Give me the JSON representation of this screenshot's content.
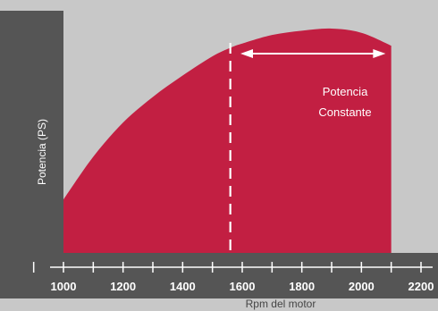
{
  "chart_data": {
    "type": "area",
    "title": "",
    "xlabel": "Rpm del motor",
    "ylabel": "Potencia (PS)",
    "xlim": [
      1000,
      2200
    ],
    "x_ticks": [
      1000,
      1200,
      1400,
      1600,
      1800,
      2000,
      2200
    ],
    "x": [
      1000,
      1100,
      1200,
      1300,
      1400,
      1500,
      1560,
      1600,
      1700,
      1800,
      1900,
      2000,
      2100
    ],
    "y": [
      0.25,
      0.45,
      0.61,
      0.73,
      0.83,
      0.92,
      0.96,
      0.98,
      1.02,
      1.04,
      1.05,
      1.03,
      0.97
    ],
    "ylim": [
      0,
      1.1
    ],
    "marker_x": 1560,
    "annotation": {
      "text_lines": [
        "Potencia",
        "Constante"
      ],
      "from_x": 1600,
      "to_x": 2090
    },
    "colors": {
      "fill": "#c21f42",
      "axis": "#555555",
      "background": "#c8c8c8",
      "ticks": "#ffffff",
      "tick_labels": "#ffffff",
      "xlabel": "#444444"
    }
  }
}
